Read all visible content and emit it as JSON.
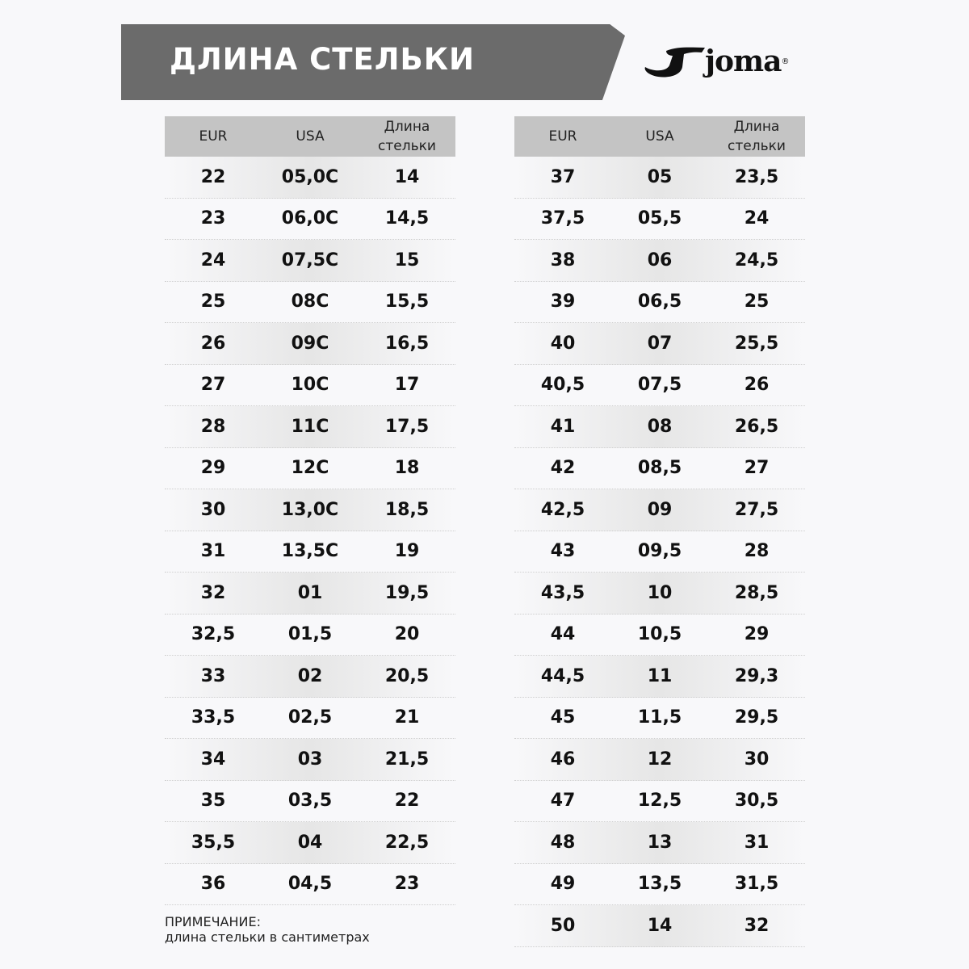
{
  "title": "ДЛИНА СТЕЛЬКИ",
  "logo": {
    "text": "joma",
    "mark": "®"
  },
  "headers": [
    "EUR",
    "USA",
    "Длина стельки"
  ],
  "left_table": [
    [
      "22",
      "05,0C",
      "14"
    ],
    [
      "23",
      "06,0C",
      "14,5"
    ],
    [
      "24",
      "07,5C",
      "15"
    ],
    [
      "25",
      "08C",
      "15,5"
    ],
    [
      "26",
      "09C",
      "16,5"
    ],
    [
      "27",
      "10C",
      "17"
    ],
    [
      "28",
      "11C",
      "17,5"
    ],
    [
      "29",
      "12C",
      "18"
    ],
    [
      "30",
      "13,0C",
      "18,5"
    ],
    [
      "31",
      "13,5C",
      "19"
    ],
    [
      "32",
      "01",
      "19,5"
    ],
    [
      "32,5",
      "01,5",
      "20"
    ],
    [
      "33",
      "02",
      "20,5"
    ],
    [
      "33,5",
      "02,5",
      "21"
    ],
    [
      "34",
      "03",
      "21,5"
    ],
    [
      "35",
      "03,5",
      "22"
    ],
    [
      "35,5",
      "04",
      "22,5"
    ],
    [
      "36",
      "04,5",
      "23"
    ]
  ],
  "right_table": [
    [
      "37",
      "05",
      "23,5"
    ],
    [
      "37,5",
      "05,5",
      "24"
    ],
    [
      "38",
      "06",
      "24,5"
    ],
    [
      "39",
      "06,5",
      "25"
    ],
    [
      "40",
      "07",
      "25,5"
    ],
    [
      "40,5",
      "07,5",
      "26"
    ],
    [
      "41",
      "08",
      "26,5"
    ],
    [
      "42",
      "08,5",
      "27"
    ],
    [
      "42,5",
      "09",
      "27,5"
    ],
    [
      "43",
      "09,5",
      "28"
    ],
    [
      "43,5",
      "10",
      "28,5"
    ],
    [
      "44",
      "10,5",
      "29"
    ],
    [
      "44,5",
      "11",
      "29,3"
    ],
    [
      "45",
      "11,5",
      "29,5"
    ],
    [
      "46",
      "12",
      "30"
    ],
    [
      "47",
      "12,5",
      "30,5"
    ],
    [
      "48",
      "13",
      "31"
    ],
    [
      "49",
      "13,5",
      "31,5"
    ],
    [
      "50",
      "14",
      "32"
    ]
  ],
  "note": {
    "label": "ПРИМЕЧАНИЕ:",
    "text": "длина стельки в сантиметрах"
  }
}
